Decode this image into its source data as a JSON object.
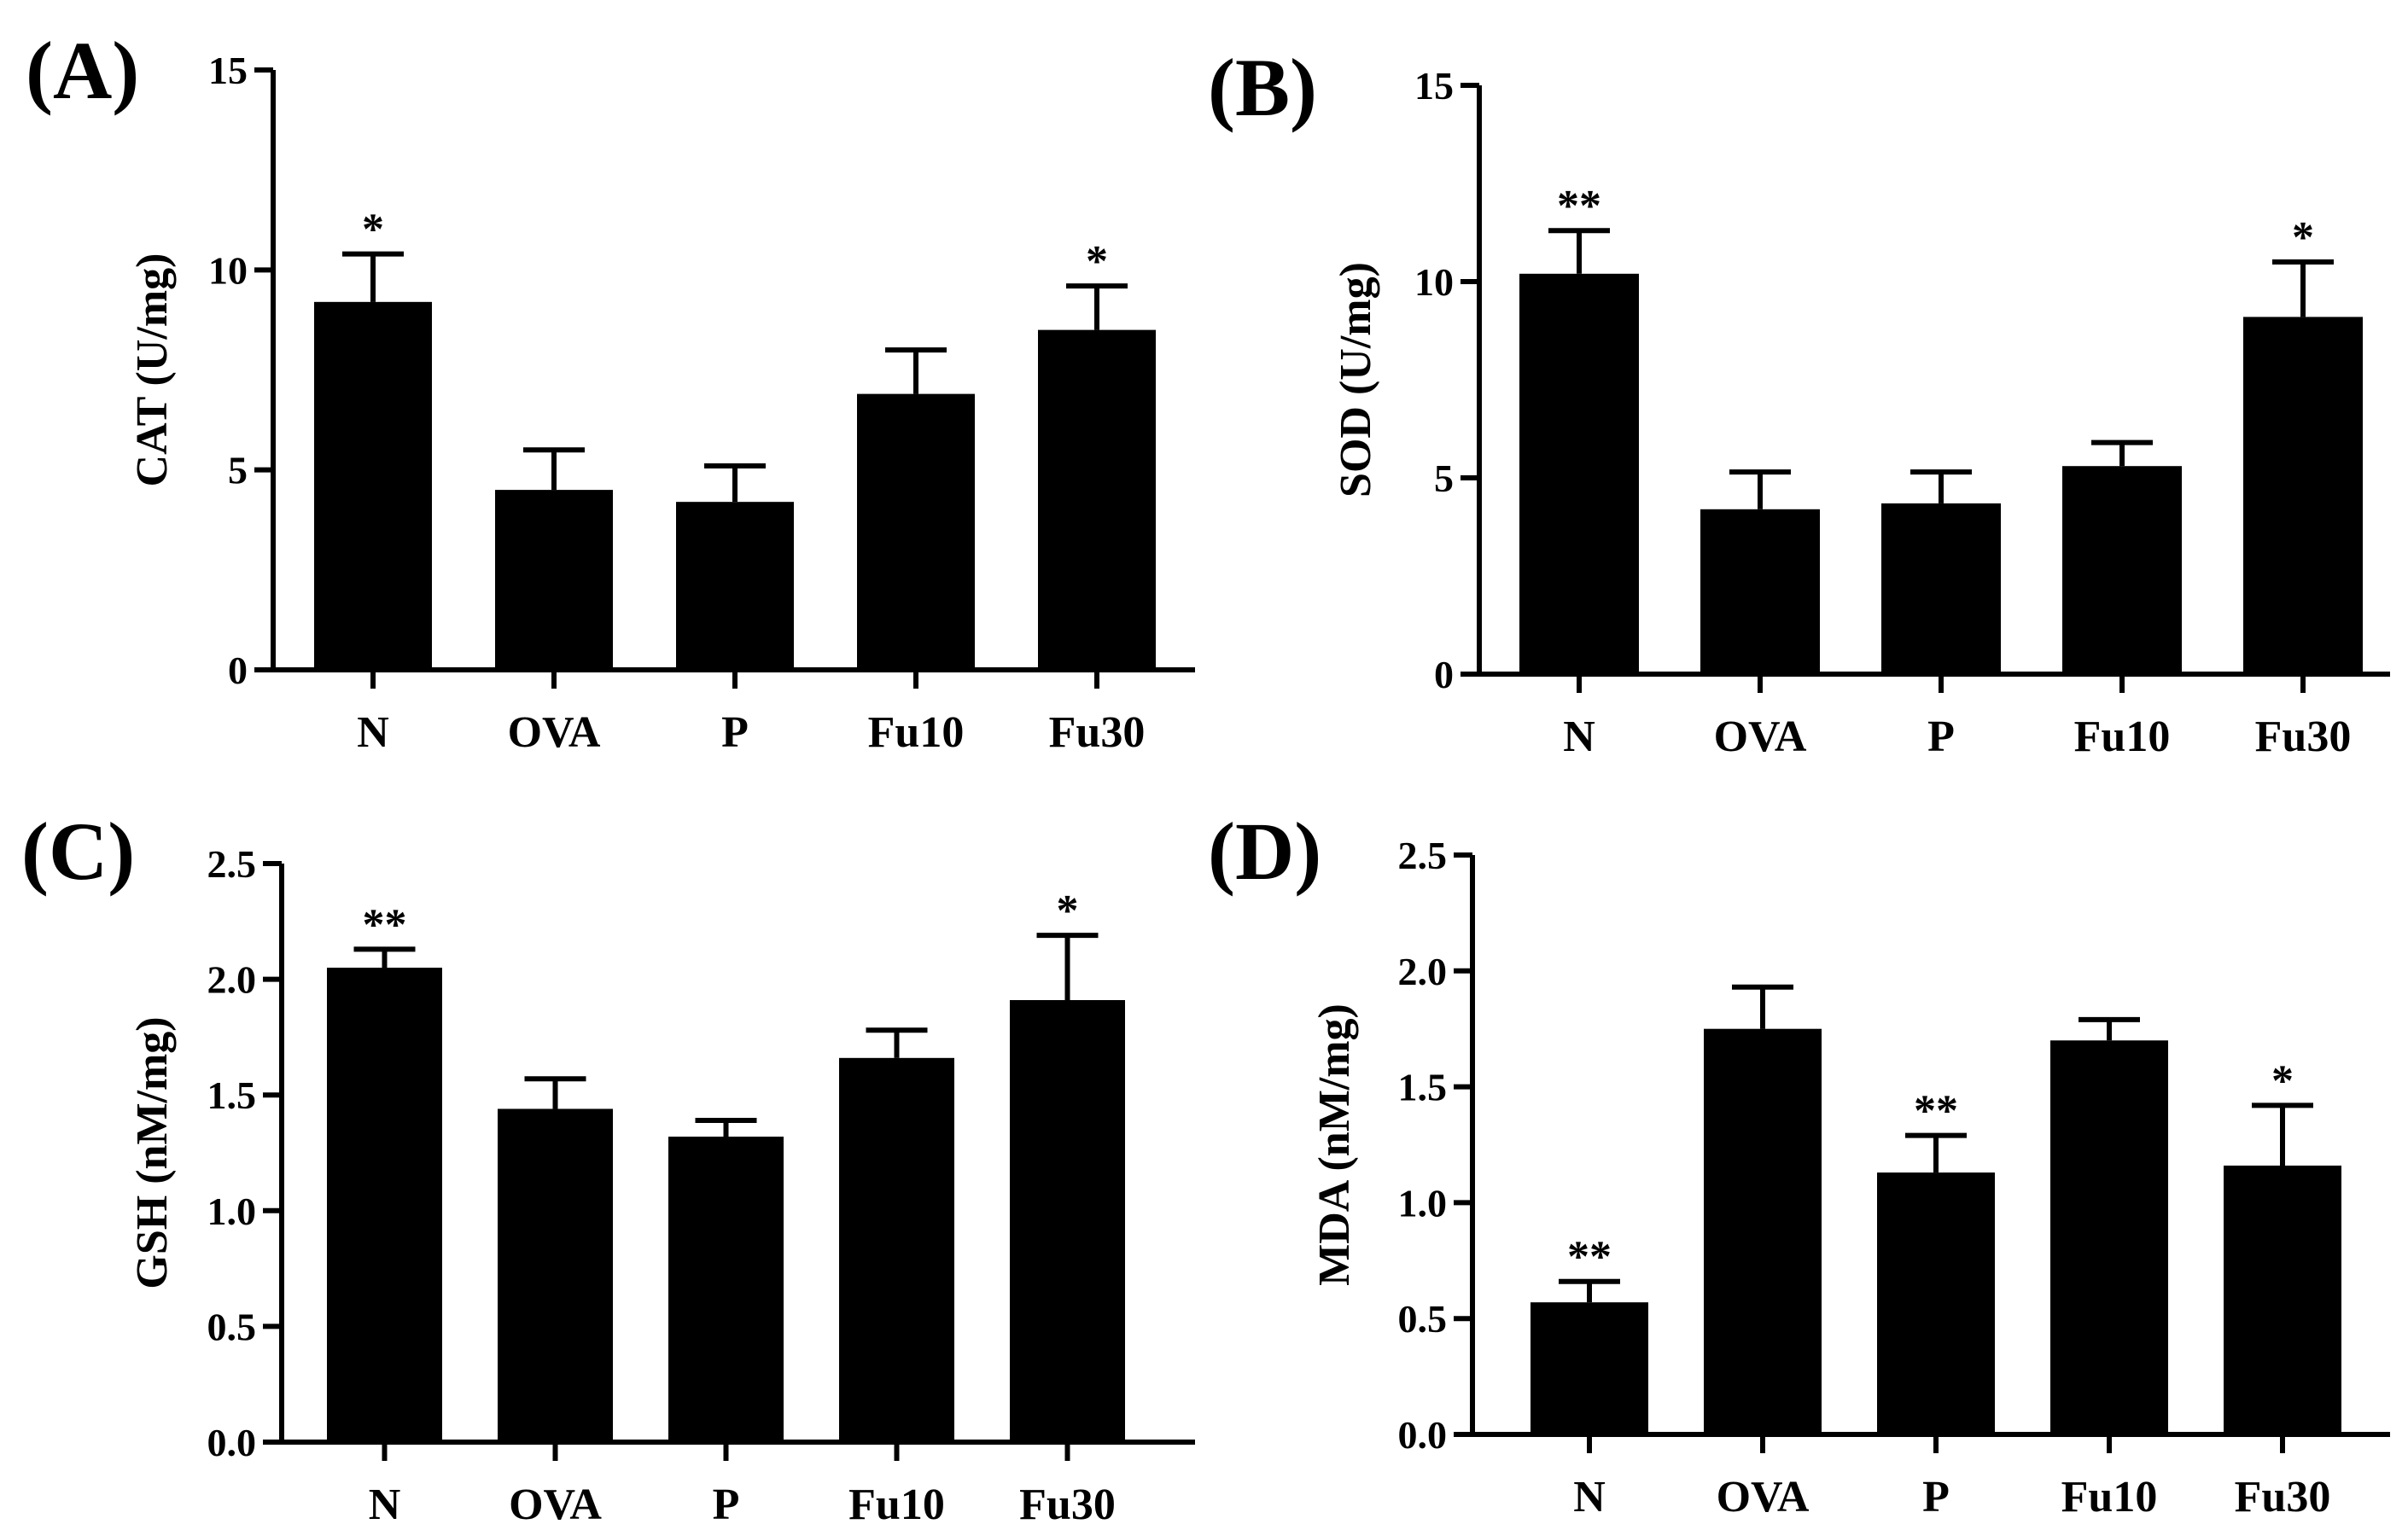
{
  "chart_data": [
    {
      "panel_label": "(A)",
      "type": "bar",
      "categories": [
        "N",
        "OVA",
        "P",
        "Fu10",
        "Fu30"
      ],
      "values": [
        9.2,
        4.5,
        4.2,
        6.9,
        8.5
      ],
      "errors": [
        1.2,
        1.0,
        0.9,
        1.1,
        1.1
      ],
      "significance": [
        "*",
        "",
        "",
        "",
        "*"
      ],
      "ylabel": "CAT (U/mg)",
      "xlabel": "",
      "ylim": [
        0,
        15
      ],
      "yticks": [
        "0",
        "5",
        "10",
        "15"
      ],
      "ytick_values": [
        0,
        5,
        10,
        15
      ]
    },
    {
      "panel_label": "(B)",
      "type": "bar",
      "categories": [
        "N",
        "OVA",
        "P",
        "Fu10",
        "Fu30"
      ],
      "values": [
        10.2,
        4.2,
        4.35,
        5.3,
        9.1
      ],
      "errors": [
        1.1,
        0.95,
        0.8,
        0.6,
        1.4
      ],
      "significance": [
        "**",
        "",
        "",
        "",
        "*"
      ],
      "ylabel": "SOD (U/mg)",
      "xlabel": "",
      "ylim": [
        0,
        15
      ],
      "yticks": [
        "0",
        "5",
        "10",
        "15"
      ],
      "ytick_values": [
        0,
        5,
        10,
        15
      ]
    },
    {
      "panel_label": "(C)",
      "type": "bar",
      "categories": [
        "N",
        "OVA",
        "P",
        "Fu10",
        "Fu30"
      ],
      "values": [
        2.05,
        1.44,
        1.32,
        1.66,
        1.91
      ],
      "errors": [
        0.08,
        0.13,
        0.07,
        0.12,
        0.28
      ],
      "significance": [
        "**",
        "",
        "",
        "",
        "*"
      ],
      "ylabel": "GSH (nM/mg)",
      "xlabel": "",
      "ylim": [
        0,
        2.5
      ],
      "yticks": [
        "0.0",
        "0.5",
        "1.0",
        "1.5",
        "2.0",
        "2.5"
      ],
      "ytick_values": [
        0,
        0.5,
        1.0,
        1.5,
        2.0,
        2.5
      ]
    },
    {
      "panel_label": "(D)",
      "type": "bar",
      "categories": [
        "N",
        "OVA",
        "P",
        "Fu10",
        "Fu30"
      ],
      "values": [
        0.57,
        1.75,
        1.13,
        1.7,
        1.16
      ],
      "errors": [
        0.09,
        0.18,
        0.16,
        0.09,
        0.26
      ],
      "significance": [
        "**",
        "",
        "**",
        "",
        "*"
      ],
      "ylabel": "MDA (nM/mg)",
      "xlabel": "",
      "ylim": [
        0,
        2.5
      ],
      "yticks": [
        "0.0",
        "0.5",
        "1.0",
        "1.5",
        "2.0",
        "2.5"
      ],
      "ytick_values": [
        0,
        0.5,
        1.0,
        1.5,
        2.0,
        2.5
      ]
    }
  ]
}
